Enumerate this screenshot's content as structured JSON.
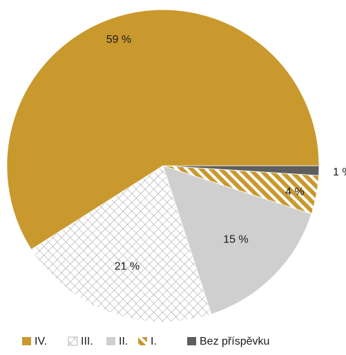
{
  "chart_data": {
    "type": "pie",
    "title": "",
    "slices": [
      {
        "label": "IV.",
        "value": 59,
        "value_label": "59 %",
        "color": "#C9992E",
        "pattern": "solid"
      },
      {
        "label": "III.",
        "value": 21,
        "value_label": "21 %",
        "color": "#FFFFFF",
        "pattern": "crosshatch"
      },
      {
        "label": "II.",
        "value": 15,
        "value_label": "15 %",
        "color": "#CFCFCF",
        "pattern": "solid"
      },
      {
        "label": "I.",
        "value": 4,
        "value_label": "4 %",
        "color": "#C9992E",
        "pattern": "diagonal-stripes"
      },
      {
        "label": "Bez příspěvku",
        "value": 1,
        "value_label": "1 %",
        "color": "#5E5E5E",
        "pattern": "solid"
      }
    ],
    "legend_position": "bottom",
    "legend_order": [
      "IV.",
      "III.",
      "II.",
      "I.",
      "Bez příspěvku"
    ]
  }
}
